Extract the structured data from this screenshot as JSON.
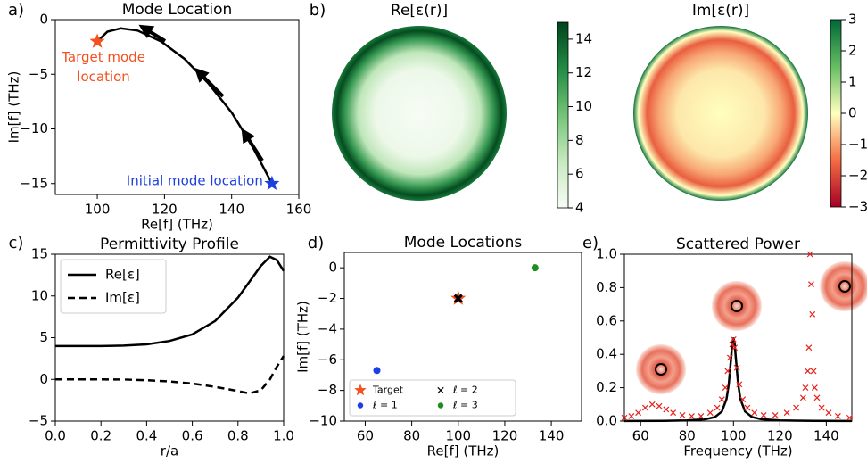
{
  "chart_data": [
    {
      "type": "line",
      "label": "a)",
      "title": "Mode Location",
      "xlabel": "Re[f] (THz)",
      "ylabel": "Im[f] (THz)",
      "xlim": [
        87.5,
        160
      ],
      "ylim": [
        -16,
        0
      ],
      "xticks": [
        100,
        120,
        140,
        160
      ],
      "yticks": [
        0,
        {
          "value": -5,
          "label": "−5"
        },
        {
          "value": -10,
          "label": "−10"
        },
        {
          "value": -15,
          "label": "−15"
        }
      ],
      "series": [
        {
          "color": "#000000",
          "x": [
            152,
            146,
            140,
            133,
            126,
            119,
            112,
            107,
            103,
            100
          ],
          "values": [
            -15,
            -11.5,
            -8.5,
            -5.8,
            -3.6,
            -2,
            -1,
            -0.8,
            -1.1,
            -2
          ]
        },
        {
          "color": "#f4511e",
          "marker": "star",
          "x": [
            100
          ],
          "values": [
            -2
          ],
          "annotation": [
            "Target mode",
            "location"
          ]
        },
        {
          "color": "#1c3fe0",
          "marker": "star",
          "x": [
            152
          ],
          "values": [
            -15
          ],
          "annotation": [
            "Initial mode location"
          ]
        }
      ]
    },
    {
      "type": "heatmap",
      "label": "b)",
      "title": "Re[ε(r)]",
      "r": [
        0,
        0.5,
        0.7,
        0.85,
        0.94,
        1
      ],
      "values": [
        4,
        4.6,
        7,
        11.7,
        14.7,
        13
      ],
      "clim": [
        4,
        15
      ],
      "colormap": [
        "#f7fcf5",
        "#c7e9c0",
        "#74c476",
        "#238b45",
        "#00441b"
      ],
      "cticks": [
        4,
        6,
        8,
        10,
        12,
        14
      ]
    },
    {
      "type": "heatmap",
      "title": "Im[ε(r)]",
      "r": [
        0,
        0.5,
        0.7,
        0.84,
        0.94,
        1
      ],
      "values": [
        0,
        -0.25,
        -0.9,
        -1.7,
        0,
        2.8
      ],
      "clim": [
        -3,
        3
      ],
      "colormap": [
        "#a50026",
        "#f46d43",
        "#ffffbf",
        "#66bd63",
        "#006837"
      ],
      "cticks": [
        {
          "value": -3,
          "label": "−3"
        },
        {
          "value": -2,
          "label": "−2"
        },
        {
          "value": -1,
          "label": "−1"
        },
        0,
        1,
        2,
        3
      ]
    },
    {
      "type": "line",
      "label": "c)",
      "title": "Permittivity Profile",
      "xlabel": "r/a",
      "xlim": [
        0,
        1
      ],
      "ylim": [
        -5,
        15
      ],
      "xticks": [
        {
          "value": 0,
          "label": "0.0"
        },
        {
          "value": 0.2,
          "label": "0.2"
        },
        {
          "value": 0.4,
          "label": "0.4"
        },
        {
          "value": 0.6,
          "label": "0.6"
        },
        {
          "value": 0.8,
          "label": "0.8"
        },
        {
          "value": 1,
          "label": "1.0"
        }
      ],
      "yticks": [
        {
          "value": -5,
          "label": "−5"
        },
        0,
        5,
        10,
        15
      ],
      "x": [
        0,
        0.1,
        0.2,
        0.3,
        0.4,
        0.5,
        0.6,
        0.7,
        0.8,
        0.85,
        0.9,
        0.94,
        0.97,
        1
      ],
      "series": [
        {
          "name": "Re[ε]",
          "color": "#000000",
          "values": [
            4,
            4,
            4,
            4.05,
            4.2,
            4.6,
            5.4,
            7,
            9.8,
            11.7,
            13.6,
            14.7,
            14.3,
            13
          ]
        },
        {
          "name": "Im[ε]",
          "color": "#000000",
          "dash": true,
          "values": [
            0,
            0,
            0,
            -0.02,
            -0.1,
            -0.25,
            -0.5,
            -0.9,
            -1.4,
            -1.7,
            -1.3,
            0,
            1.5,
            2.8
          ]
        }
      ],
      "legend": "upper left"
    },
    {
      "type": "scatter",
      "label": "d)",
      "title": "Mode Locations",
      "xlabel": "Re[f] (THz)",
      "ylabel": "Im[f] (THz)",
      "xlim": [
        51,
        153
      ],
      "ylim": [
        -10,
        1
      ],
      "xticks": [
        60,
        80,
        100,
        120,
        140
      ],
      "yticks": [
        {
          "value": -10,
          "label": "−10"
        },
        {
          "value": -8,
          "label": "−8"
        },
        {
          "value": -6,
          "label": "−6"
        },
        {
          "value": -4,
          "label": "−4"
        },
        {
          "value": -2,
          "label": "−2"
        },
        0
      ],
      "series": [
        {
          "name": "Target",
          "color": "#f4511e",
          "marker": "star",
          "x": [
            100
          ],
          "values": [
            -2
          ]
        },
        {
          "name": "ℓ = 1",
          "color": "#1a3ee8",
          "marker": "circle",
          "x": [
            65
          ],
          "values": [
            -6.7
          ]
        },
        {
          "name": "ℓ = 2",
          "color": "#000000",
          "marker": "x",
          "x": [
            100
          ],
          "values": [
            -2
          ]
        },
        {
          "name": "ℓ = 3",
          "color": "#1e8c1e",
          "marker": "circle",
          "x": [
            133
          ],
          "values": [
            0
          ]
        }
      ],
      "legend": "lower left",
      "legend_columns": 2
    },
    {
      "type": "line",
      "label": "e)",
      "title": "Scattered Power",
      "xlabel": "Frequency (THz)",
      "xlim": [
        53,
        151
      ],
      "ylim": [
        0,
        1
      ],
      "xticks": [
        60,
        80,
        100,
        120,
        140
      ],
      "yticks": [
        {
          "value": 0,
          "label": "0.0"
        },
        {
          "value": 0.2,
          "label": "0.2"
        },
        {
          "value": 0.4,
          "label": "0.4"
        },
        {
          "value": 0.6,
          "label": "0.6"
        },
        {
          "value": 0.8,
          "label": "0.8"
        },
        {
          "value": 1,
          "label": "1.0"
        }
      ],
      "series": [
        {
          "color": "#000000",
          "x": [
            53,
            70,
            80,
            88,
            92,
            95,
            97,
            98,
            99,
            99.5,
            100,
            100.5,
            101,
            102,
            103,
            105,
            108,
            112,
            120,
            135,
            151
          ],
          "values": [
            0.0007,
            0.0018,
            0.004,
            0.011,
            0.024,
            0.057,
            0.132,
            0.224,
            0.382,
            0.464,
            0.5,
            0.464,
            0.382,
            0.224,
            0.132,
            0.057,
            0.024,
            0.011,
            0.004,
            0.0013,
            0.0006
          ]
        },
        {
          "color": "#e8221b",
          "marker": "x",
          "x": [
            53,
            56,
            59,
            62,
            65,
            68,
            71,
            74,
            78,
            82,
            86,
            90,
            93,
            95,
            96.5,
            97.5,
            98.5,
            99.5,
            100,
            100.5,
            101.5,
            102.5,
            104,
            106,
            109,
            113,
            118,
            123,
            127,
            130,
            131,
            132,
            132.5,
            133,
            133.5,
            134,
            134.5,
            135,
            136,
            138,
            141,
            145,
            150
          ],
          "values": [
            0.02,
            0.03,
            0.05,
            0.08,
            0.1,
            0.09,
            0.07,
            0.05,
            0.035,
            0.03,
            0.03,
            0.05,
            0.08,
            0.13,
            0.2,
            0.3,
            0.38,
            0.46,
            0.49,
            0.44,
            0.32,
            0.22,
            0.13,
            0.08,
            0.05,
            0.035,
            0.035,
            0.05,
            0.08,
            0.14,
            0.2,
            0.3,
            0.44,
            1.0,
            0.82,
            0.64,
            0.3,
            0.2,
            0.14,
            0.08,
            0.05,
            0.03,
            0.02
          ]
        }
      ]
    }
  ]
}
